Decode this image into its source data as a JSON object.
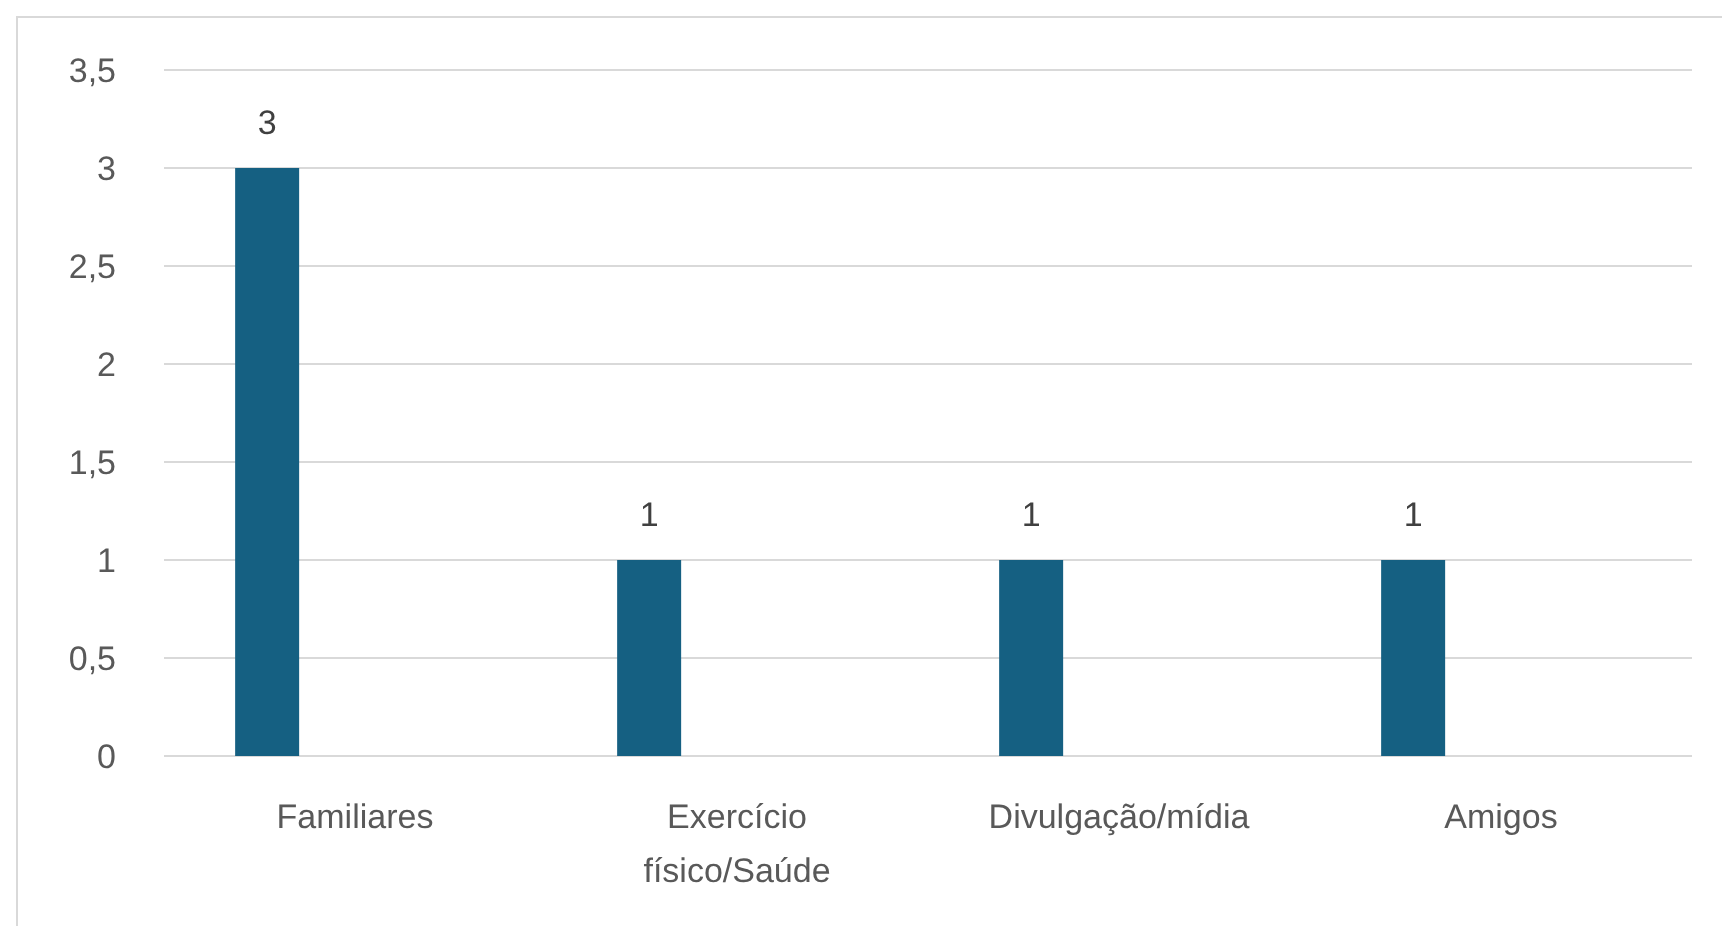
{
  "chart_data": {
    "type": "bar",
    "categories": [
      "Familiares",
      "Exercício físico/Saúde",
      "Divulgação/mídia",
      "Amigos"
    ],
    "values": [
      3,
      1,
      1,
      1
    ],
    "color": "#156082",
    "ylim": [
      0,
      3.5
    ],
    "yticks": [
      0,
      {
        "value": 0.5,
        "label": "0,5"
      },
      1,
      {
        "value": 1.5,
        "label": "1,5"
      },
      2,
      {
        "value": 2.5,
        "label": "2,5"
      },
      3,
      {
        "value": 3.5,
        "label": "3,5"
      }
    ],
    "grid": "y",
    "data_labels": true
  }
}
